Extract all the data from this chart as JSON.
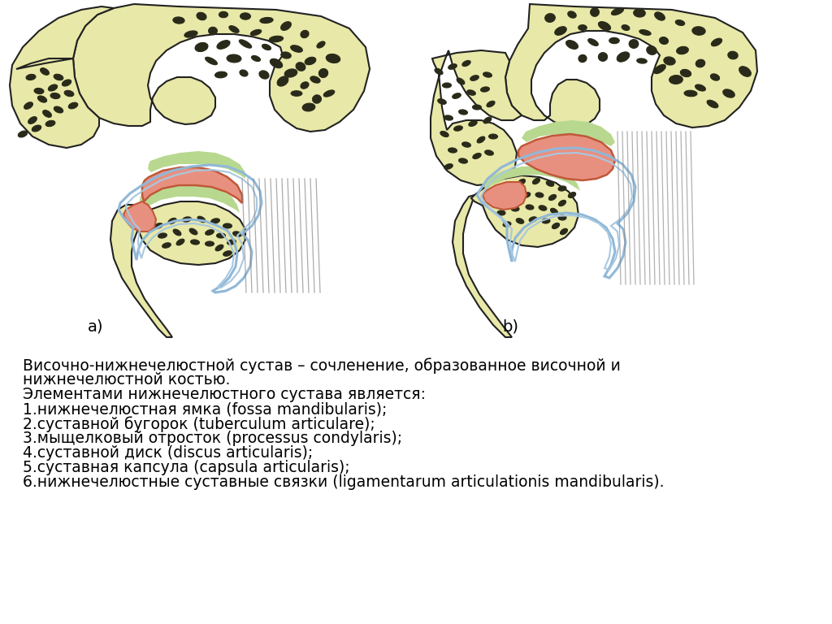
{
  "background_color": "#f0ede8",
  "bone_color": "#e8e8a8",
  "bone_outline": "#222222",
  "cartilage_color": "#b8d890",
  "disc_color": "#e89080",
  "capsule_outer_color": "#90b8d8",
  "capsule_inner_color": "#a8c8e0",
  "ligament_stripe_color": "#aaaaaa",
  "dark_spot_color": "#2a2a1a",
  "label_a": "a)",
  "label_b": "b)",
  "text_lines": [
    "Височно-нижнечелюстной сустав – сочленение, образованное височной и",
    "нижнечелюстной костью.",
    "Элементами нижнечелюстного сустава является:",
    "1.нижнечелюстная ямка (fossa mandibularis);",
    "2.суставной бугорок (tuberculum articulare);",
    "3.мыщелковый отросток (processus condylaris);",
    "4.суставной диск (discus articularis);",
    "5.суставная капсула (capsula articularis);",
    "6.нижнечелюстные суставные связки (ligamentarum articulationis mandibularis)."
  ],
  "font_size_text": 13.5,
  "label_font_size": 14
}
